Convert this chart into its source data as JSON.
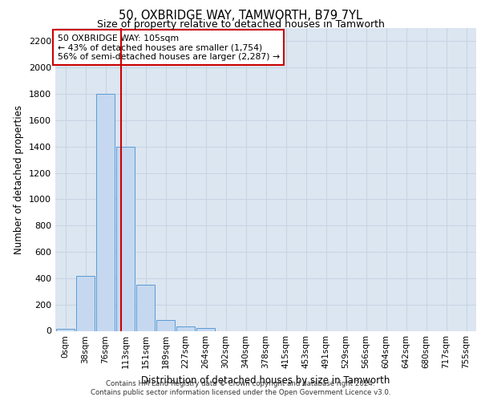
{
  "title": "50, OXBRIDGE WAY, TAMWORTH, B79 7YL",
  "subtitle": "Size of property relative to detached houses in Tamworth",
  "xlabel": "Distribution of detached houses by size in Tamworth",
  "ylabel": "Number of detached properties",
  "bar_labels": [
    "0sqm",
    "38sqm",
    "76sqm",
    "113sqm",
    "151sqm",
    "189sqm",
    "227sqm",
    "264sqm",
    "302sqm",
    "340sqm",
    "378sqm",
    "415sqm",
    "453sqm",
    "491sqm",
    "529sqm",
    "566sqm",
    "604sqm",
    "642sqm",
    "680sqm",
    "717sqm",
    "755sqm"
  ],
  "bar_values": [
    15,
    420,
    1800,
    1400,
    350,
    80,
    35,
    20,
    0,
    0,
    0,
    0,
    0,
    0,
    0,
    0,
    0,
    0,
    0,
    0,
    0
  ],
  "bar_color": "#c5d8f0",
  "bar_edge_color": "#5b9bd5",
  "grid_color": "#c8d4e3",
  "background_color": "#dce6f1",
  "vline_x": 2.78,
  "annotation_text": "50 OXBRIDGE WAY: 105sqm\n← 43% of detached houses are smaller (1,754)\n56% of semi-detached houses are larger (2,287) →",
  "annotation_box_color": "#ffffff",
  "annotation_box_edge": "#cc0000",
  "vline_color": "#cc0000",
  "ylim": [
    0,
    2300
  ],
  "yticks": [
    0,
    200,
    400,
    600,
    800,
    1000,
    1200,
    1400,
    1600,
    1800,
    2000,
    2200
  ],
  "footer_line1": "Contains HM Land Registry data © Crown copyright and database right 2024.",
  "footer_line2": "Contains public sector information licensed under the Open Government Licence v3.0."
}
